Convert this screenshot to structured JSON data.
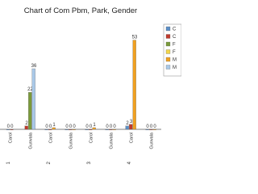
{
  "chart_data": {
    "type": "bar",
    "title": "Chart of Com Pbm, Park, Gender",
    "categories": [
      "Carol",
      "Gurwala",
      "Carol",
      "Gurwala",
      "Carol",
      "Gurwala",
      "Carol",
      "Gurwala"
    ],
    "groups": [
      "1",
      "2",
      "3",
      "4"
    ],
    "ylim": [
      0,
      60
    ],
    "legend_position": "right",
    "series": [
      {
        "name": "C",
        "color": "#5b8fc7",
        "values": [
          0,
          null,
          0,
          0,
          0,
          0,
          2,
          0
        ]
      },
      {
        "name": "C",
        "color": "#c0392b",
        "values": [
          0,
          2,
          0,
          0,
          0,
          0,
          3,
          0
        ]
      },
      {
        "name": "F",
        "color": "#7a9a3a",
        "values": [
          null,
          22,
          null,
          null,
          null,
          null,
          null,
          null
        ]
      },
      {
        "name": "F",
        "color": "#f2d64b",
        "values": [
          null,
          null,
          null,
          null,
          null,
          null,
          null,
          null
        ]
      },
      {
        "name": "M",
        "color": "#f0a020",
        "values": [
          null,
          null,
          1,
          0,
          1,
          0,
          53,
          0
        ]
      },
      {
        "name": "M",
        "color": "#a9c8e8",
        "values": [
          null,
          36,
          null,
          null,
          null,
          null,
          null,
          null
        ]
      }
    ]
  }
}
